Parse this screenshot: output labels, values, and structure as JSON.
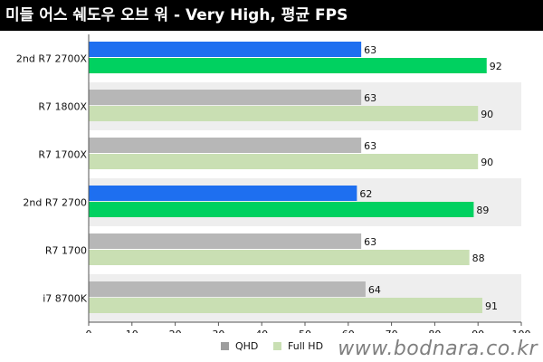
{
  "title": "미들 어스 쉐도우 오브 워 - Very High, 평균 FPS",
  "watermark": "www.bodnara.co.kr",
  "colors": {
    "qhd_highlight": "#1e6ff0",
    "qhd": "#b7b7b7",
    "fullhd_highlight": "#00d160",
    "fullhd": "#c9dfb3",
    "band": "#eeeeee"
  },
  "chart_data": {
    "type": "bar",
    "orientation": "horizontal",
    "categories": [
      "2nd R7 2700X",
      "R7 1800X",
      "R7 1700X",
      "2nd R7 2700",
      "R7 1700",
      "i7 8700K"
    ],
    "series": [
      {
        "name": "QHD",
        "values": [
          63,
          63,
          63,
          62,
          63,
          64
        ]
      },
      {
        "name": "Full HD",
        "values": [
          92,
          90,
          90,
          89,
          88,
          91
        ]
      }
    ],
    "highlighted_categories": [
      "2nd R7 2700X",
      "2nd R7 2700"
    ],
    "xlim": [
      0,
      100
    ],
    "xticks": [
      "0",
      "10",
      "20",
      "30",
      "40",
      "50",
      "60",
      "70",
      "80",
      "90",
      "100"
    ],
    "grid": false,
    "legend_position": "bottom"
  }
}
